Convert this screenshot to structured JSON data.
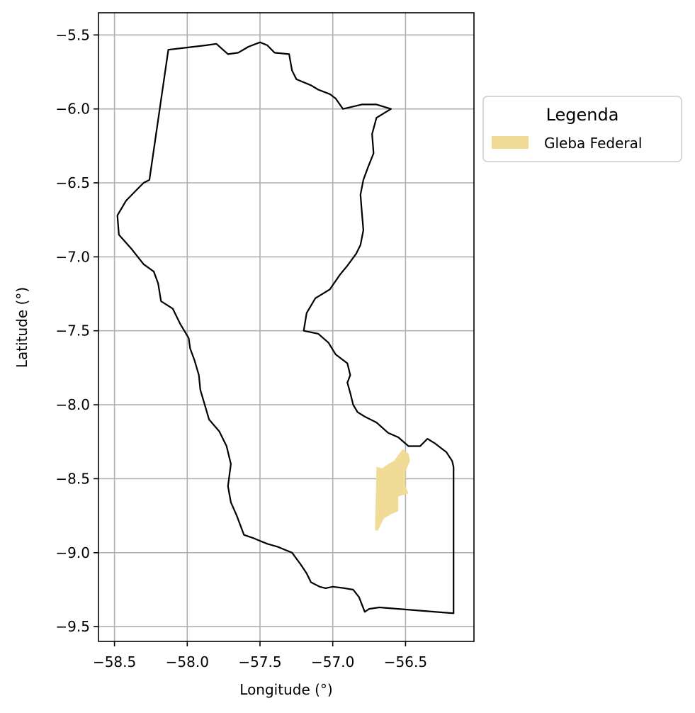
{
  "chart_data": {
    "type": "map",
    "xlabel": "Longitude (°)",
    "ylabel": "Latitude (°)",
    "xlim": [
      -58.61,
      -56.03
    ],
    "ylim": [
      -9.6,
      -5.35
    ],
    "x_ticks": [
      -58.5,
      -58.0,
      -57.5,
      -57.0,
      -56.5
    ],
    "x_tick_labels": [
      "−58.5",
      "−58.0",
      "−57.5",
      "−57.0",
      "−56.5"
    ],
    "y_ticks": [
      -5.5,
      -6.0,
      -6.5,
      -7.0,
      -7.5,
      -8.0,
      -8.5,
      -9.0,
      -9.5
    ],
    "y_tick_labels": [
      "−5.5",
      "−6.0",
      "−6.5",
      "−7.0",
      "−7.5",
      "−8.0",
      "−8.5",
      "−9.0",
      "−9.5"
    ],
    "grid": true,
    "legend": {
      "title": "Legenda",
      "placement": "outside-right-top",
      "entries": [
        {
          "label": "Gleba Federal",
          "color": "#f0dc96"
        }
      ]
    },
    "boundary": {
      "stroke": "#000000",
      "points": [
        [
          -58.13,
          -5.6
        ],
        [
          -57.87,
          -5.57
        ],
        [
          -57.8,
          -5.56
        ],
        [
          -57.72,
          -5.63
        ],
        [
          -57.65,
          -5.62
        ],
        [
          -57.58,
          -5.58
        ],
        [
          -57.5,
          -5.55
        ],
        [
          -57.45,
          -5.57
        ],
        [
          -57.4,
          -5.62
        ],
        [
          -57.3,
          -5.63
        ],
        [
          -57.28,
          -5.74
        ],
        [
          -57.25,
          -5.8
        ],
        [
          -57.15,
          -5.84
        ],
        [
          -57.1,
          -5.87
        ],
        [
          -57.02,
          -5.9
        ],
        [
          -56.98,
          -5.93
        ],
        [
          -56.93,
          -6.0
        ],
        [
          -56.8,
          -5.97
        ],
        [
          -56.7,
          -5.97
        ],
        [
          -56.6,
          -6.0
        ],
        [
          -56.7,
          -6.06
        ],
        [
          -56.73,
          -6.17
        ],
        [
          -56.72,
          -6.3
        ],
        [
          -56.76,
          -6.4
        ],
        [
          -56.79,
          -6.48
        ],
        [
          -56.81,
          -6.58
        ],
        [
          -56.8,
          -6.7
        ],
        [
          -56.79,
          -6.82
        ],
        [
          -56.81,
          -6.92
        ],
        [
          -56.84,
          -6.98
        ],
        [
          -56.9,
          -7.06
        ],
        [
          -56.95,
          -7.12
        ],
        [
          -57.02,
          -7.22
        ],
        [
          -57.12,
          -7.28
        ],
        [
          -57.18,
          -7.38
        ],
        [
          -57.2,
          -7.5
        ],
        [
          -57.1,
          -7.52
        ],
        [
          -57.03,
          -7.58
        ],
        [
          -56.98,
          -7.66
        ],
        [
          -56.9,
          -7.72
        ],
        [
          -56.88,
          -7.8
        ],
        [
          -56.9,
          -7.85
        ],
        [
          -56.88,
          -7.92
        ],
        [
          -56.86,
          -8.0
        ],
        [
          -56.83,
          -8.05
        ],
        [
          -56.78,
          -8.08
        ],
        [
          -56.7,
          -8.12
        ],
        [
          -56.62,
          -8.19
        ],
        [
          -56.55,
          -8.22
        ],
        [
          -56.48,
          -8.28
        ],
        [
          -56.4,
          -8.28
        ],
        [
          -56.35,
          -8.23
        ],
        [
          -56.3,
          -8.26
        ],
        [
          -56.22,
          -8.32
        ],
        [
          -56.18,
          -8.38
        ],
        [
          -56.17,
          -8.42
        ],
        [
          -56.17,
          -9.41
        ],
        [
          -56.68,
          -9.37
        ],
        [
          -56.75,
          -9.38
        ],
        [
          -56.78,
          -9.4
        ],
        [
          -56.8,
          -9.35
        ],
        [
          -56.82,
          -9.3
        ],
        [
          -56.86,
          -9.25
        ],
        [
          -56.92,
          -9.24
        ],
        [
          -57.0,
          -9.23
        ],
        [
          -57.05,
          -9.24
        ],
        [
          -57.09,
          -9.23
        ],
        [
          -57.15,
          -9.2
        ],
        [
          -57.18,
          -9.14
        ],
        [
          -57.22,
          -9.08
        ],
        [
          -57.28,
          -9.0
        ],
        [
          -57.33,
          -8.98
        ],
        [
          -57.38,
          -8.96
        ],
        [
          -57.45,
          -8.94
        ],
        [
          -57.5,
          -8.92
        ],
        [
          -57.55,
          -8.9
        ],
        [
          -57.61,
          -8.88
        ],
        [
          -57.66,
          -8.75
        ],
        [
          -57.7,
          -8.66
        ],
        [
          -57.72,
          -8.55
        ],
        [
          -57.7,
          -8.4
        ],
        [
          -57.73,
          -8.28
        ],
        [
          -57.78,
          -8.18
        ],
        [
          -57.85,
          -8.1
        ],
        [
          -57.88,
          -8.0
        ],
        [
          -57.91,
          -7.9
        ],
        [
          -57.92,
          -7.8
        ],
        [
          -57.95,
          -7.7
        ],
        [
          -57.98,
          -7.62
        ],
        [
          -57.99,
          -7.55
        ],
        [
          -58.05,
          -7.45
        ],
        [
          -58.1,
          -7.35
        ],
        [
          -58.18,
          -7.3
        ],
        [
          -58.2,
          -7.18
        ],
        [
          -58.23,
          -7.1
        ],
        [
          -58.3,
          -7.05
        ],
        [
          -58.38,
          -6.95
        ],
        [
          -58.47,
          -6.85
        ],
        [
          -58.48,
          -6.72
        ],
        [
          -58.42,
          -6.62
        ],
        [
          -58.35,
          -6.55
        ],
        [
          -58.3,
          -6.5
        ],
        [
          -58.26,
          -6.48
        ],
        [
          -58.13,
          -5.6
        ]
      ]
    },
    "polygons": [
      {
        "name": "Gleba Federal",
        "color": "#f0dc96",
        "points": [
          [
            -56.7,
            -8.42
          ],
          [
            -56.66,
            -8.43
          ],
          [
            -56.62,
            -8.4
          ],
          [
            -56.58,
            -8.38
          ],
          [
            -56.55,
            -8.34
          ],
          [
            -56.52,
            -8.3
          ],
          [
            -56.48,
            -8.33
          ],
          [
            -56.47,
            -8.38
          ],
          [
            -56.5,
            -8.45
          ],
          [
            -56.5,
            -8.55
          ],
          [
            -56.48,
            -8.6
          ],
          [
            -56.55,
            -8.62
          ],
          [
            -56.55,
            -8.72
          ],
          [
            -56.6,
            -8.74
          ],
          [
            -56.65,
            -8.77
          ],
          [
            -56.69,
            -8.85
          ],
          [
            -56.71,
            -8.85
          ],
          [
            -56.7,
            -8.42
          ]
        ]
      }
    ]
  }
}
